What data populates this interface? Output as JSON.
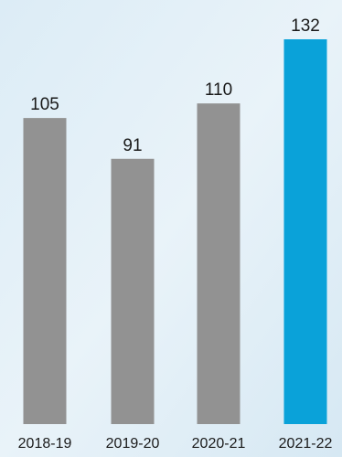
{
  "chart_data": {
    "type": "bar",
    "categories": [
      "2018-19",
      "2019-20",
      "2020-21",
      "2021-22"
    ],
    "values": [
      105,
      91,
      110,
      132
    ],
    "data_labels": [
      "105",
      "91",
      "110",
      "132"
    ],
    "ylim": [
      0,
      132
    ],
    "grid": false,
    "colors": {
      "default": "#929292",
      "highlight": "#0aa2d9",
      "background": "#e4f0f8"
    },
    "highlight_index": 3
  }
}
